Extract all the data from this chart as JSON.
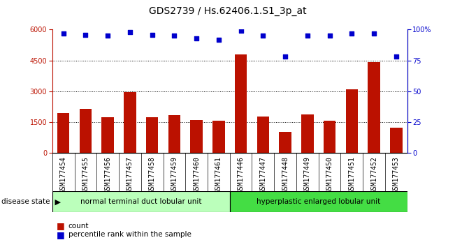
{
  "title": "GDS2739 / Hs.62406.1.S1_3p_at",
  "categories": [
    "GSM177454",
    "GSM177455",
    "GSM177456",
    "GSM177457",
    "GSM177458",
    "GSM177459",
    "GSM177460",
    "GSM177461",
    "GSM177446",
    "GSM177447",
    "GSM177448",
    "GSM177449",
    "GSM177450",
    "GSM177451",
    "GSM177452",
    "GSM177453"
  ],
  "bar_values": [
    1950,
    2150,
    1750,
    2980,
    1750,
    1850,
    1600,
    1560,
    4780,
    1780,
    1050,
    1870,
    1570,
    3100,
    4430,
    1220
  ],
  "dot_values": [
    97,
    96,
    95,
    98,
    96,
    95,
    93,
    92,
    99,
    95,
    78,
    95,
    95,
    97,
    97,
    78
  ],
  "bar_color": "#bb1100",
  "dot_color": "#0000cc",
  "group1_label": "normal terminal duct lobular unit",
  "group2_label": "hyperplastic enlarged lobular unit",
  "group1_count": 8,
  "group2_count": 8,
  "group1_color": "#bbffbb",
  "group2_color": "#44dd44",
  "disease_state_label": "disease state",
  "ylim_left": [
    0,
    6000
  ],
  "ylim_right": [
    0,
    100
  ],
  "yticks_left": [
    0,
    1500,
    3000,
    4500,
    6000
  ],
  "yticks_right": [
    0,
    25,
    50,
    75,
    100
  ],
  "ytick_labels_right": [
    "0",
    "25",
    "50",
    "75",
    "100%"
  ],
  "legend_count_label": "count",
  "legend_pct_label": "percentile rank within the sample",
  "bg_color": "#ffffff",
  "title_fontsize": 10,
  "tick_fontsize": 7,
  "dot_size": 25,
  "bar_width": 0.55
}
